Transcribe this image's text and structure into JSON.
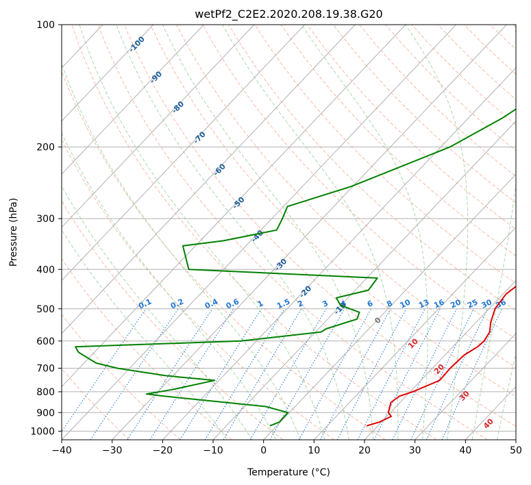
{
  "chart_data": {
    "type": "line",
    "title": "wetPf2_C2E2.2020.208.19.38.G20",
    "xlabel": "Temperature (°C)",
    "ylabel": "Pressure (hPa)",
    "xlim": [
      -40,
      50
    ],
    "ylim": [
      1050,
      100
    ],
    "y_scale": "log",
    "grid": true,
    "x_ticks": [
      "−40",
      "−30",
      "−20",
      "−10",
      "0",
      "10",
      "20",
      "30",
      "40",
      "50"
    ],
    "y_ticks": [
      "100",
      "200",
      "300",
      "400",
      "500",
      "600",
      "700",
      "800",
      "900",
      "1000"
    ],
    "y_tick_values": [
      100,
      200,
      300,
      400,
      500,
      600,
      700,
      800,
      900,
      1000
    ],
    "colors": {
      "temperature": "#e00000",
      "dewpoint": "#008000",
      "isotherm": "#b0b0b0",
      "dry_adiabat": "#f7a58c",
      "moist_adiabat": "#9fd39f",
      "mixing_ratio": "#1f77d4",
      "isotherm_label": "#1f5f9a",
      "warm_label": "#d62728",
      "zero_label": "#777777"
    },
    "isotherm_labels": [
      {
        "text": "-100",
        "t": -100
      },
      {
        "text": "-90",
        "t": -90
      },
      {
        "text": "-80",
        "t": -80
      },
      {
        "text": "-70",
        "t": -70
      },
      {
        "text": "-60",
        "t": -60
      },
      {
        "text": "-50",
        "t": -50
      },
      {
        "text": "-40",
        "t": -40
      },
      {
        "text": "-30",
        "t": -30
      },
      {
        "text": "-20",
        "t": -20
      },
      {
        "text": "-10",
        "t": -10
      },
      {
        "text": "0",
        "t": 0
      },
      {
        "text": "10",
        "t": 10
      },
      {
        "text": "20",
        "t": 20
      },
      {
        "text": "30",
        "t": 30
      },
      {
        "text": "40",
        "t": 40
      }
    ],
    "mixing_ratio_labels": [
      "0.1",
      "0.2",
      "0.4",
      "0.6",
      "1",
      "1.5",
      "2",
      "3",
      "4",
      "6",
      "8",
      "10",
      "13",
      "16",
      "20",
      "25",
      "30",
      "36"
    ],
    "mixing_ratio_values": [
      0.1,
      0.2,
      0.4,
      0.6,
      1,
      1.5,
      2,
      3,
      4,
      6,
      8,
      10,
      13,
      16,
      20,
      25,
      30,
      36
    ],
    "series": [
      {
        "name": "Temperature",
        "p": [
          970,
          950,
          920,
          900,
          850,
          820,
          800,
          750,
          700,
          650,
          620,
          600,
          570,
          540,
          500,
          460,
          420,
          400,
          380,
          350,
          300,
          250,
          200,
          170,
          150,
          130,
          110,
          100
        ],
        "t": [
          17.8,
          19.6,
          20.9,
          19.6,
          18.2,
          18.7,
          20.5,
          23.7,
          23.5,
          23.8,
          24.9,
          25.1,
          24.5,
          22.9,
          21.2,
          20.6,
          21.7,
          23.8,
          24.4,
          23.4,
          22.4,
          22.8,
          25.6,
          29.6,
          30.5,
          32.2,
          34.4,
          36.3
        ]
      },
      {
        "name": "Dewpoint",
        "p": [
          970,
          950,
          900,
          870,
          840,
          820,
          810,
          790,
          750,
          730,
          700,
          680,
          640,
          620,
          600,
          570,
          560,
          530,
          510,
          490,
          470,
          450,
          420,
          400,
          350,
          340,
          320,
          300,
          280,
          250,
          200,
          170,
          150,
          140,
          120,
          110,
          100
        ],
        "t": [
          -1.4,
          -0.2,
          -0.3,
          -5.8,
          -18.9,
          -28,
          -31.8,
          -27.5,
          -20.9,
          -31.6,
          -42.5,
          -47.6,
          -53.1,
          -54.8,
          -23.1,
          -8.9,
          -8.5,
          -4.2,
          -5,
          -10.1,
          -12.3,
          -7.4,
          -7.9,
          -46.9,
          -52.5,
          -45.4,
          -36.9,
          -37.9,
          -39.2,
          -30.3,
          -18.2,
          -13.3,
          -10.8,
          -10.1,
          -4.7,
          -3.3,
          -0.7
        ]
      }
    ]
  }
}
